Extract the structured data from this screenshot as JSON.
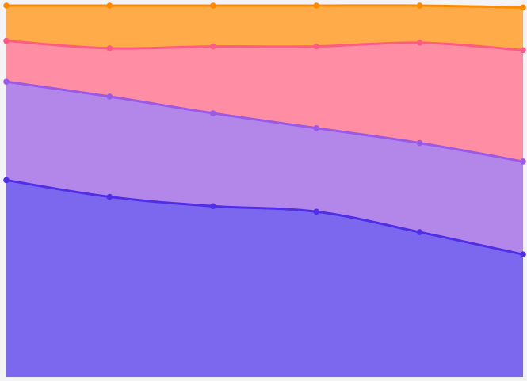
{
  "chart_data": {
    "type": "area",
    "stacked": true,
    "normalized_percent": true,
    "x": [
      0,
      1,
      2,
      3,
      4,
      5
    ],
    "ylim": [
      0,
      100
    ],
    "grid": true,
    "legend": "none",
    "title": "",
    "xlabel": "",
    "ylabel": "",
    "series": [
      {
        "values": [
          53,
          48.5,
          46,
          44.5,
          39,
          33
        ],
        "color": "#4f2ee6",
        "fill": "#7b68ee"
      },
      {
        "values": [
          26.5,
          27,
          25,
          22.5,
          24,
          25
        ],
        "color": "#9b59e6",
        "fill": "#b386ea"
      },
      {
        "values": [
          11,
          13,
          18,
          22,
          27,
          30
        ],
        "color": "#ff5b84",
        "fill": "#ff8ea4"
      },
      {
        "values": [
          9.5,
          11.5,
          11,
          11,
          10,
          11.5
        ],
        "color": "#ff8a00",
        "fill": "#ffab4a"
      }
    ]
  }
}
